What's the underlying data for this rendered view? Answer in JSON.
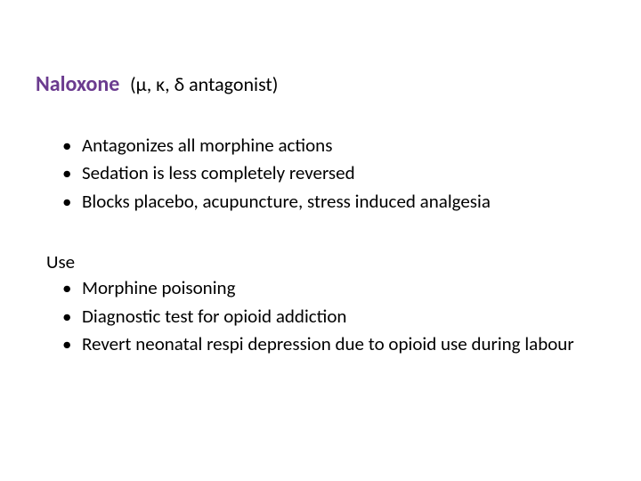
{
  "title": {
    "main": "Naloxone",
    "sub": "(μ, κ, δ antagonist)",
    "main_color": "#6b3b8f",
    "sub_color": "#000000",
    "main_fontsize": 24,
    "sub_fontsize": 22
  },
  "actions": {
    "items": [
      "Antagonizes all morphine actions",
      "Sedation is less completely reversed",
      "Blocks placebo, acupuncture, stress induced analgesia"
    ],
    "text_color": "#000000",
    "fontsize": 21
  },
  "use": {
    "heading": "Use",
    "items": [
      "Morphine poisoning",
      "Diagnostic test for opioid addiction",
      "Revert neonatal respi depression due to opioid use during labour"
    ],
    "text_color": "#000000",
    "fontsize": 21
  },
  "background_color": "#ffffff"
}
